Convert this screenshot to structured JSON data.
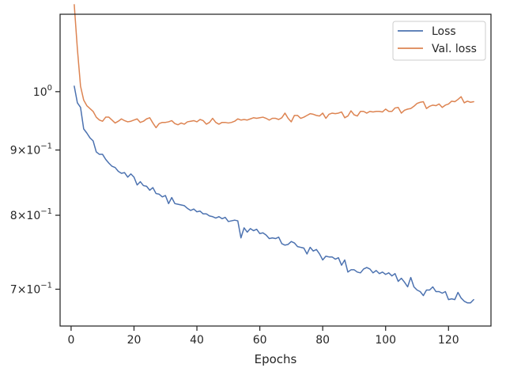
{
  "chart_data": {
    "type": "line",
    "xlabel": "Epochs",
    "ylabel": "",
    "xlim": [
      -3.5,
      133.5
    ],
    "ylim": [
      0.655,
      1.15
    ],
    "yscale": "log",
    "grid": false,
    "legend_position": "upper right",
    "x_ticks": [
      0,
      20,
      40,
      60,
      80,
      100,
      120
    ],
    "x_tick_labels": [
      "0",
      "20",
      "40",
      "60",
      "80",
      "100",
      "120"
    ],
    "y_ticks": [
      {
        "value": 1.0,
        "base": "10",
        "exponent": "0",
        "mantissa": ""
      },
      {
        "value": 0.9,
        "mantissa": "9",
        "base": "10",
        "exponent": "−1"
      },
      {
        "value": 0.8,
        "mantissa": "8",
        "base": "10",
        "exponent": "−1"
      },
      {
        "value": 0.7,
        "mantissa": "7",
        "base": "10",
        "exponent": "−1"
      }
    ],
    "colors": {
      "loss": "#4c72b0",
      "val_loss": "#dd8452",
      "axis": "#262626"
    },
    "series": [
      {
        "name": "Loss",
        "color": "#4c72b0",
        "x": [
          1,
          2,
          3,
          4,
          5,
          6,
          7,
          8,
          9,
          10,
          11,
          12,
          13,
          14,
          15,
          16,
          17,
          18,
          19,
          20,
          21,
          22,
          23,
          24,
          25,
          26,
          27,
          28,
          29,
          30,
          31,
          32,
          33,
          34,
          35,
          36,
          37,
          38,
          39,
          40,
          41,
          42,
          43,
          44,
          45,
          46,
          47,
          48,
          49,
          50,
          51,
          52,
          53,
          54,
          55,
          56,
          57,
          58,
          59,
          60,
          61,
          62,
          63,
          64,
          65,
          66,
          67,
          68,
          69,
          70,
          71,
          72,
          73,
          74,
          75,
          76,
          77,
          78,
          79,
          80,
          81,
          82,
          83,
          84,
          85,
          86,
          87,
          88,
          89,
          90,
          91,
          92,
          93,
          94,
          95,
          96,
          97,
          98,
          99,
          100,
          101,
          102,
          103,
          104,
          105,
          106,
          107,
          108,
          109,
          110,
          111,
          112,
          113,
          114,
          115,
          116,
          117,
          118,
          119,
          120,
          121,
          122,
          123,
          124,
          125,
          126,
          127,
          128
        ],
        "values": [
          1.01,
          0.98,
          0.972,
          0.935,
          0.928,
          0.92,
          0.915,
          0.897,
          0.893,
          0.893,
          0.885,
          0.879,
          0.874,
          0.872,
          0.866,
          0.863,
          0.864,
          0.857,
          0.862,
          0.857,
          0.845,
          0.85,
          0.844,
          0.843,
          0.837,
          0.841,
          0.832,
          0.831,
          0.827,
          0.829,
          0.817,
          0.826,
          0.817,
          0.816,
          0.815,
          0.814,
          0.81,
          0.807,
          0.809,
          0.805,
          0.806,
          0.802,
          0.802,
          0.799,
          0.798,
          0.796,
          0.798,
          0.795,
          0.797,
          0.791,
          0.792,
          0.793,
          0.792,
          0.768,
          0.782,
          0.776,
          0.781,
          0.778,
          0.78,
          0.774,
          0.775,
          0.772,
          0.767,
          0.768,
          0.767,
          0.769,
          0.76,
          0.758,
          0.759,
          0.763,
          0.761,
          0.756,
          0.755,
          0.754,
          0.746,
          0.755,
          0.75,
          0.752,
          0.746,
          0.738,
          0.743,
          0.742,
          0.742,
          0.739,
          0.741,
          0.731,
          0.738,
          0.722,
          0.725,
          0.725,
          0.722,
          0.721,
          0.726,
          0.728,
          0.726,
          0.721,
          0.724,
          0.72,
          0.722,
          0.719,
          0.721,
          0.717,
          0.72,
          0.71,
          0.714,
          0.709,
          0.703,
          0.715,
          0.703,
          0.699,
          0.697,
          0.692,
          0.699,
          0.699,
          0.703,
          0.697,
          0.697,
          0.695,
          0.697,
          0.687,
          0.688,
          0.687,
          0.696,
          0.689,
          0.685,
          0.683,
          0.683,
          0.687
        ]
      },
      {
        "name": "Val. loss",
        "color": "#dd8452",
        "x": [
          1,
          2,
          3,
          4,
          5,
          6,
          7,
          8,
          9,
          10,
          11,
          12,
          13,
          14,
          15,
          16,
          17,
          18,
          19,
          20,
          21,
          22,
          23,
          24,
          25,
          26,
          27,
          28,
          29,
          30,
          31,
          32,
          33,
          34,
          35,
          36,
          37,
          38,
          39,
          40,
          41,
          42,
          43,
          44,
          45,
          46,
          47,
          48,
          49,
          50,
          51,
          52,
          53,
          54,
          55,
          56,
          57,
          58,
          59,
          60,
          61,
          62,
          63,
          64,
          65,
          66,
          67,
          68,
          69,
          70,
          71,
          72,
          73,
          74,
          75,
          76,
          77,
          78,
          79,
          80,
          81,
          82,
          83,
          84,
          85,
          86,
          87,
          88,
          89,
          90,
          91,
          92,
          93,
          94,
          95,
          96,
          97,
          98,
          99,
          100,
          101,
          102,
          103,
          104,
          105,
          106,
          107,
          108,
          109,
          110,
          111,
          112,
          113,
          114,
          115,
          116,
          117,
          118,
          119,
          120,
          121,
          122,
          123,
          124,
          125,
          126,
          127,
          128
        ],
        "values": [
          1.17,
          1.08,
          1.01,
          0.985,
          0.975,
          0.97,
          0.965,
          0.955,
          0.95,
          0.948,
          0.955,
          0.955,
          0.95,
          0.945,
          0.948,
          0.952,
          0.949,
          0.947,
          0.948,
          0.95,
          0.952,
          0.946,
          0.948,
          0.952,
          0.954,
          0.945,
          0.937,
          0.944,
          0.946,
          0.946,
          0.947,
          0.949,
          0.944,
          0.942,
          0.945,
          0.943,
          0.947,
          0.948,
          0.949,
          0.947,
          0.951,
          0.949,
          0.943,
          0.946,
          0.953,
          0.946,
          0.943,
          0.946,
          0.946,
          0.945,
          0.946,
          0.948,
          0.952,
          0.95,
          0.951,
          0.95,
          0.952,
          0.954,
          0.953,
          0.954,
          0.955,
          0.953,
          0.95,
          0.953,
          0.953,
          0.951,
          0.954,
          0.962,
          0.953,
          0.947,
          0.958,
          0.958,
          0.953,
          0.955,
          0.958,
          0.961,
          0.96,
          0.958,
          0.957,
          0.962,
          0.953,
          0.96,
          0.962,
          0.961,
          0.962,
          0.964,
          0.954,
          0.957,
          0.966,
          0.959,
          0.957,
          0.965,
          0.965,
          0.962,
          0.965,
          0.964,
          0.965,
          0.965,
          0.964,
          0.969,
          0.965,
          0.965,
          0.971,
          0.972,
          0.962,
          0.967,
          0.969,
          0.97,
          0.974,
          0.979,
          0.981,
          0.982,
          0.97,
          0.974,
          0.976,
          0.975,
          0.978,
          0.972,
          0.976,
          0.978,
          0.983,
          0.982,
          0.986,
          0.991,
          0.98,
          0.983,
          0.981,
          0.982
        ]
      }
    ]
  }
}
